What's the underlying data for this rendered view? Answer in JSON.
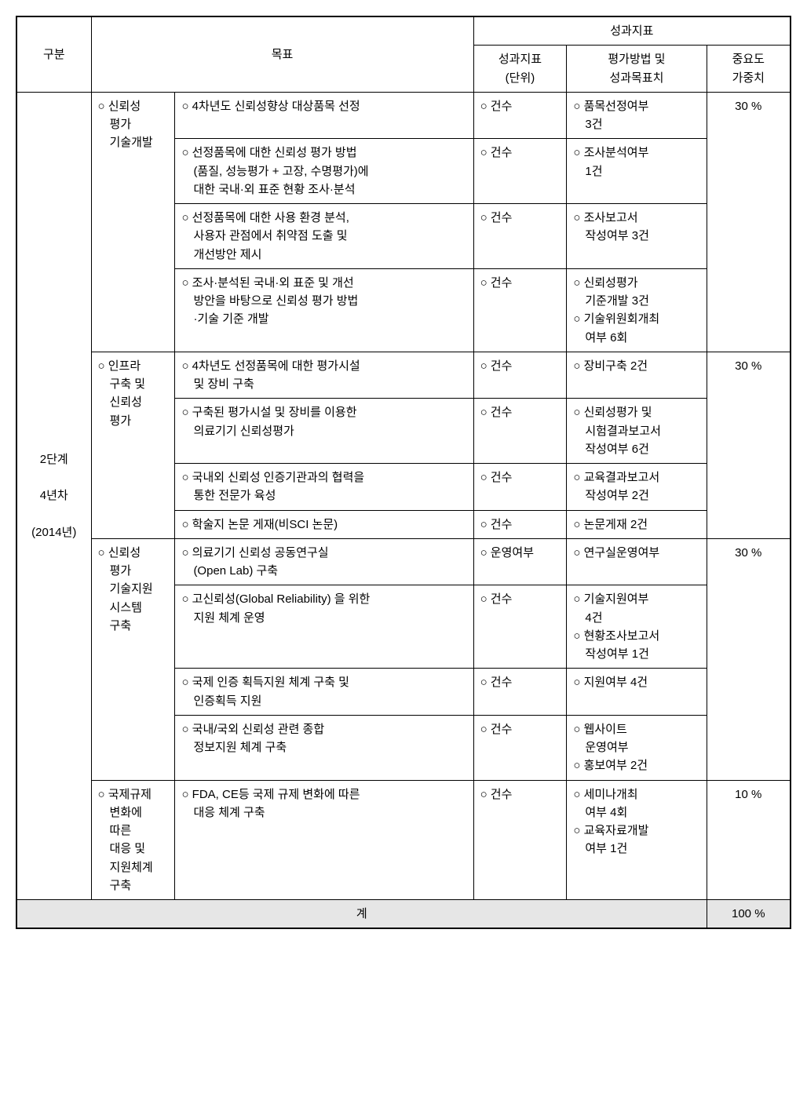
{
  "headers": {
    "gubun": "구분",
    "goal": "목표",
    "metric_group": "성과지표",
    "metric_unit": "성과지표\n(단위)",
    "metric_target": "평가방법 및\n성과목표치",
    "weight": "중요도\n가중치"
  },
  "phase": {
    "line1": "2단계",
    "line2": "4년차",
    "line3": "(2014년)"
  },
  "sections": [
    {
      "category": "○ 신뢰성\n　평가\n　기술개발",
      "weight": "30 %",
      "rows": [
        {
          "goal": "○ 4차년도 신뢰성향상 대상품목 선정",
          "unit": "○ 건수",
          "target": "○ 품목선정여부\n　3건"
        },
        {
          "goal": "○ 선정품목에 대한 신뢰성 평가 방법\n　(품질, 성능평가 + 고장, 수명평가)에\n　대한 국내·외 표준 현황 조사·분석",
          "unit": "○ 건수",
          "target": "○ 조사분석여부\n　1건"
        },
        {
          "goal": "○ 선정품목에 대한 사용 환경 분석,\n　사용자 관점에서 취약점 도출 및\n　개선방안 제시",
          "unit": "○ 건수",
          "target": "○ 조사보고서\n　작성여부 3건"
        },
        {
          "goal": "○ 조사·분석된 국내·외 표준 및 개선\n　방안을 바탕으로 신뢰성 평가 방법\n　·기술 기준 개발",
          "unit": "○ 건수",
          "target": "○ 신뢰성평가\n　기준개발 3건\n○ 기술위원회개최\n　여부 6회"
        }
      ]
    },
    {
      "category": "○ 인프라\n　구축 및\n　신뢰성\n　평가",
      "weight": "30 %",
      "rows": [
        {
          "goal": "○ 4차년도 선정품목에 대한 평가시설\n　및 장비 구축",
          "unit": "○ 건수",
          "target": "○ 장비구축 2건"
        },
        {
          "goal": "○ 구축된 평가시설 및 장비를 이용한\n　의료기기 신뢰성평가",
          "unit": "○ 건수",
          "target": "○ 신뢰성평가 및\n　시험결과보고서\n　작성여부 6건"
        },
        {
          "goal": "○ 국내외 신뢰성 인증기관과의 협력을\n　통한 전문가 육성",
          "unit": "○ 건수",
          "target": "○ 교육결과보고서\n　작성여부 2건"
        },
        {
          "goal": "○ 학술지 논문 게재(비SCI 논문)",
          "unit": "○ 건수",
          "target": "○ 논문게재 2건"
        }
      ]
    },
    {
      "category": "○ 신뢰성\n　평가\n　기술지원\n　시스템\n　구축",
      "weight": "30 %",
      "rows": [
        {
          "goal": "○ 의료기기 신뢰성 공동연구실\n　(Open Lab) 구축",
          "unit": "○ 운영여부",
          "target": "○ 연구실운영여부"
        },
        {
          "goal": "○ 고신뢰성(Global Reliability) 을 위한\n　지원 체계 운영",
          "unit": "○ 건수",
          "target": "○ 기술지원여부\n　4건\n○ 현황조사보고서\n　작성여부 1건"
        },
        {
          "goal": "○ 국제 인증 획득지원 체계 구축 및\n　인증획득 지원",
          "unit": "○ 건수",
          "target": "○ 지원여부 4건"
        },
        {
          "goal": "○ 국내/국외 신뢰성 관련 종합\n　정보지원 체계 구축",
          "unit": "○ 건수",
          "target": "○ 웹사이트\n　운영여부\n○ 홍보여부 2건"
        }
      ]
    },
    {
      "category": "○ 국제규제\n　변화에\n　따른\n　대응 및\n　지원체계\n　구축",
      "weight": "10 %",
      "rows": [
        {
          "goal": "○ FDA, CE등 국제 규제 변화에 따른\n　대응 체계 구축",
          "unit": "○ 건수",
          "target": "○ 세미나개최\n　여부 4회\n○ 교육자료개발\n　여부 1건"
        }
      ]
    }
  ],
  "total": {
    "label": "계",
    "value": "100 %"
  }
}
